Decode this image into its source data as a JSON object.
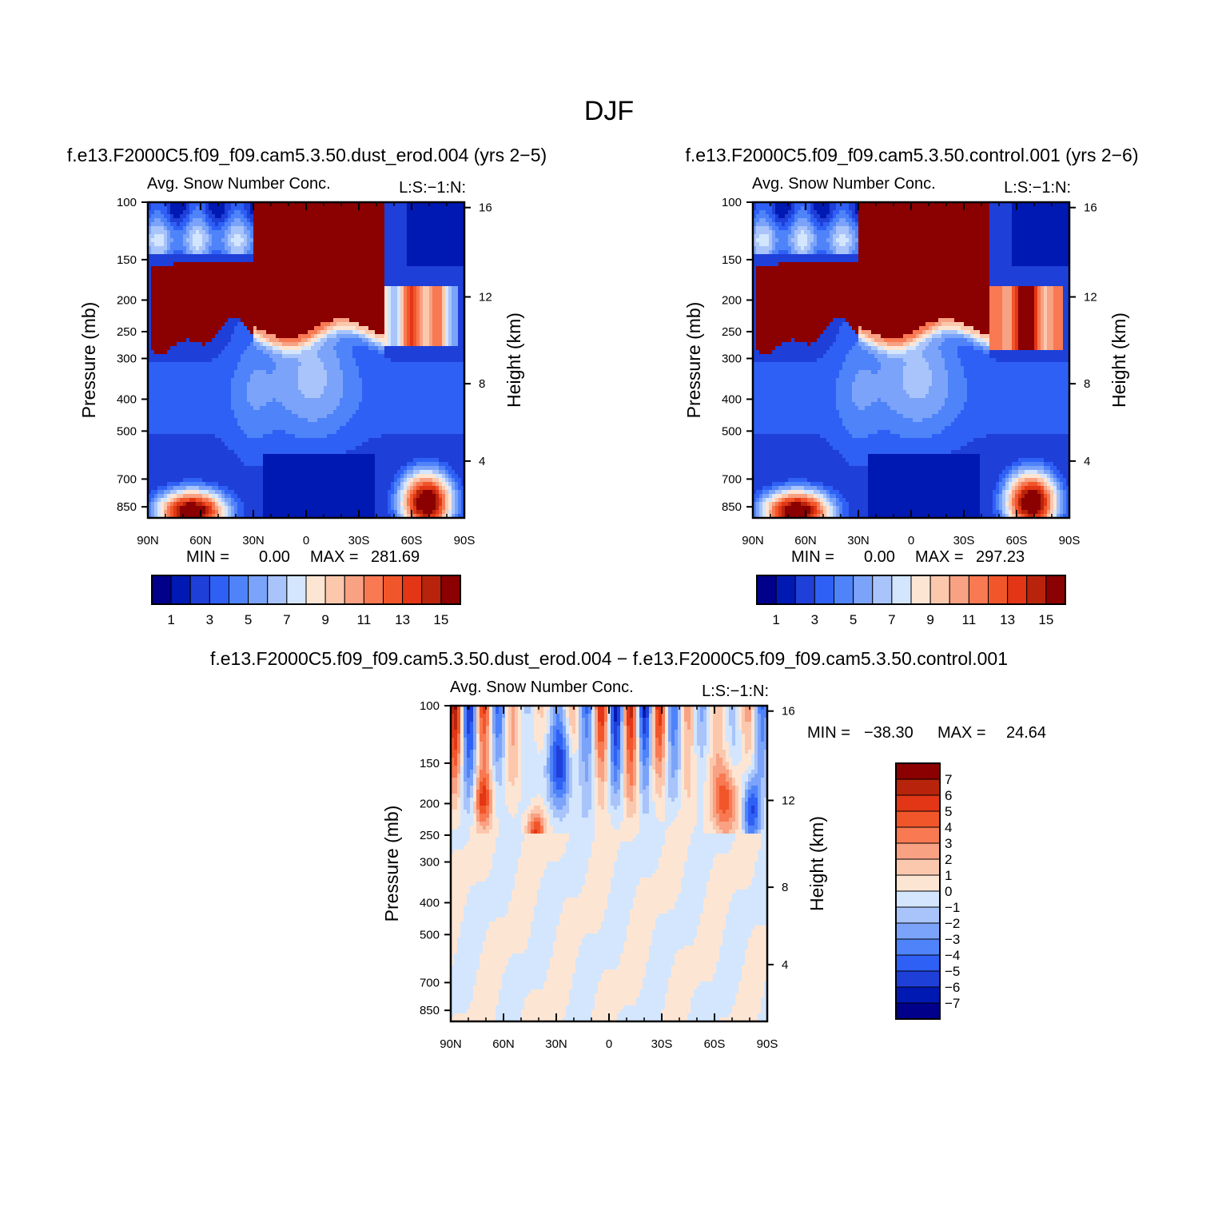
{
  "figure": {
    "title": "DJF"
  },
  "palettes": {
    "abs": [
      "#00008b",
      "#0019b3",
      "#1f3fd9",
      "#2f60f5",
      "#4f83f9",
      "#7ba3f9",
      "#a8c4fa",
      "#d3e6fd",
      "#fde5d4",
      "#fbc8ae",
      "#f8a183",
      "#f87952",
      "#f1562a",
      "#e23616",
      "#b8240b",
      "#8b0000"
    ],
    "diff": [
      "#8b0000",
      "#b8240b",
      "#e23616",
      "#f1562a",
      "#f87952",
      "#f8a183",
      "#fbc8ae",
      "#fde5d4",
      "#d3e6fd",
      "#a8c4fa",
      "#7ba3f9",
      "#4f83f9",
      "#2f60f5",
      "#1f3fd9",
      "#0019b3",
      "#00008b"
    ]
  },
  "chart_data": [
    {
      "type": "heatmap",
      "id": "panel-case",
      "subtitle": "f.e13.F2000C5.f09_f09.cam5.3.50.dust_erod.004 (yrs 2−5)",
      "left_label": "Avg. Snow Number Conc.",
      "right_label": "L:S:−1:N:",
      "ylabel": "Pressure (mb)",
      "ylabel_right": "Height (km)",
      "x_ticks": [
        "90N",
        "60N",
        "30N",
        "0",
        "30S",
        "60S",
        "90S"
      ],
      "y_ticks": [
        "100",
        "150",
        "200",
        "250",
        "300",
        "400",
        "500",
        "700",
        "850"
      ],
      "y_right_ticks": [
        "16",
        "12",
        "8",
        "4"
      ],
      "stats": {
        "min_label": "MIN =",
        "min": "0.00",
        "max_label": "MAX =",
        "max": "281.69"
      },
      "colorbar": {
        "orientation": "horizontal",
        "labels": [
          "1",
          "3",
          "5",
          "7",
          "9",
          "11",
          "13",
          "15"
        ]
      },
      "value_range": "0 to 281.69 (contour levels 1–15)",
      "ylim": [
        1000,
        100
      ]
    },
    {
      "type": "heatmap",
      "id": "panel-control",
      "subtitle": "f.e13.F2000C5.f09_f09.cam5.3.50.control.001 (yrs 2−6)",
      "left_label": "Avg. Snow Number Conc.",
      "right_label": "L:S:−1:N:",
      "ylabel": "Pressure (mb)",
      "ylabel_right": "Height (km)",
      "x_ticks": [
        "90N",
        "60N",
        "30N",
        "0",
        "30S",
        "60S",
        "90S"
      ],
      "y_ticks": [
        "100",
        "150",
        "200",
        "250",
        "300",
        "400",
        "500",
        "700",
        "850"
      ],
      "y_right_ticks": [
        "16",
        "12",
        "8",
        "4"
      ],
      "stats": {
        "min_label": "MIN =",
        "min": "0.00",
        "max_label": "MAX =",
        "max": "297.23"
      },
      "colorbar": {
        "orientation": "horizontal",
        "labels": [
          "1",
          "3",
          "5",
          "7",
          "9",
          "11",
          "13",
          "15"
        ]
      },
      "ylim": [
        1000,
        100
      ]
    },
    {
      "type": "heatmap",
      "id": "panel-diff",
      "subtitle": "f.e13.F2000C5.f09_f09.cam5.3.50.dust_erod.004 − f.e13.F2000C5.f09_f09.cam5.3.50.control.001",
      "left_label": "Avg. Snow Number Conc.",
      "right_label": "L:S:−1:N:",
      "ylabel": "Pressure (mb)",
      "ylabel_right": "Height (km)",
      "x_ticks": [
        "90N",
        "60N",
        "30N",
        "0",
        "30S",
        "60S",
        "90S"
      ],
      "y_ticks": [
        "100",
        "150",
        "200",
        "250",
        "300",
        "400",
        "500",
        "700",
        "850"
      ],
      "y_right_ticks": [
        "16",
        "12",
        "8",
        "4"
      ],
      "stats": {
        "min_label": "MIN =",
        "min": "−38.30",
        "max_label": "MAX =",
        "max": "24.64"
      },
      "colorbar": {
        "orientation": "vertical",
        "labels": [
          "7",
          "6",
          "5",
          "4",
          "3",
          "2",
          "1",
          "0",
          "−1",
          "−2",
          "−3",
          "−4",
          "−5",
          "−6",
          "−7"
        ]
      },
      "ylim": [
        1000,
        100
      ]
    }
  ]
}
